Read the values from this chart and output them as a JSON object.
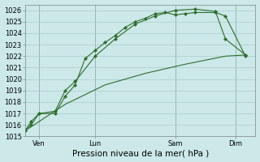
{
  "background_color": "#cce8e8",
  "grid_color": "#aacccc",
  "line_color": "#2d6e2d",
  "ylim": [
    1015,
    1026.5
  ],
  "ytick_min": 1015,
  "ytick_max": 1026,
  "xlabel": "Pression niveau de la mer( hPa )",
  "xlabel_fontsize": 7.5,
  "tick_fontsize": 6,
  "series1_x": [
    0.0,
    0.3,
    0.7,
    1.5,
    2.0,
    2.5,
    3.0,
    3.5,
    4.0,
    4.5,
    5.0,
    5.5,
    6.0,
    6.5,
    7.0,
    7.5,
    8.0,
    8.5,
    9.5,
    10.0,
    11.0
  ],
  "series1_y": [
    1015.5,
    1016.3,
    1017.0,
    1017.0,
    1018.5,
    1019.5,
    1021.8,
    1022.5,
    1023.2,
    1023.8,
    1024.5,
    1025.0,
    1025.3,
    1025.7,
    1025.8,
    1025.6,
    1025.7,
    1025.8,
    1025.8,
    1025.5,
    1022.0
  ],
  "series2_x": [
    0.0,
    0.3,
    0.7,
    1.5,
    2.0,
    2.5,
    3.5,
    4.5,
    5.5,
    6.5,
    7.5,
    8.5,
    9.5,
    10.0,
    11.0
  ],
  "series2_y": [
    1015.5,
    1016.0,
    1017.0,
    1017.2,
    1019.0,
    1019.8,
    1022.0,
    1023.5,
    1024.8,
    1025.5,
    1026.0,
    1026.1,
    1025.9,
    1023.5,
    1022.1
  ],
  "series3_x": [
    0.0,
    2.0,
    4.0,
    6.0,
    8.0,
    10.0,
    11.0
  ],
  "series3_y": [
    1015.5,
    1017.8,
    1019.5,
    1020.5,
    1021.3,
    1022.0,
    1022.1
  ],
  "vlines_x": [
    0.7,
    3.5,
    7.5,
    10.5
  ],
  "xtick_positions": [
    0.7,
    3.5,
    7.5,
    10.5
  ],
  "xtick_labels": [
    "Ven",
    "Lun",
    "Sam",
    "Dim"
  ],
  "xlim": [
    0,
    11.5
  ]
}
